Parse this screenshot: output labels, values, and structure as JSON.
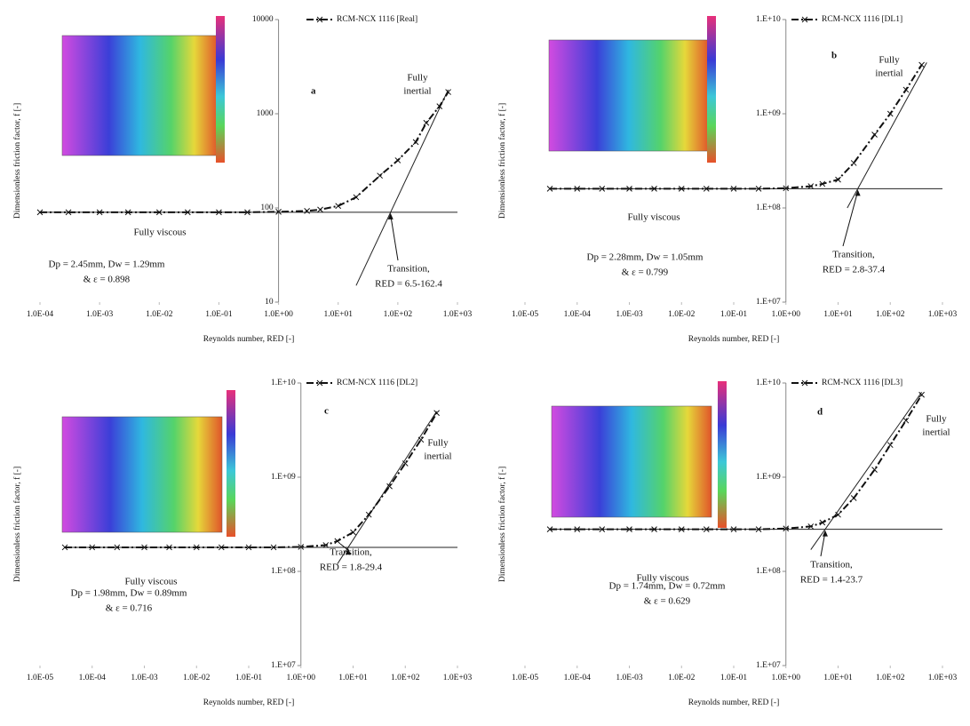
{
  "chart_data": [
    {
      "type": "line",
      "panel_label": "a",
      "log_x": true,
      "log_y": true,
      "x_label": "Reynolds number, RED [-]",
      "y_label": "Dimensionless friction factor, f [-]",
      "xlim": [
        0.0001,
        1000
      ],
      "ylim": [
        10,
        10000
      ],
      "xticks": [
        {
          "value": 0.0001,
          "label": "1.0E-04"
        },
        {
          "value": 0.001,
          "label": "1.0E-03"
        },
        {
          "value": 0.01,
          "label": "1.0E-02"
        },
        {
          "value": 0.1,
          "label": "1.0E-01"
        },
        {
          "value": 1,
          "label": "1.0E+00"
        },
        {
          "value": 10,
          "label": "1.0E+01"
        },
        {
          "value": 100,
          "label": "1.0E+02"
        },
        {
          "value": 1000,
          "label": "1.0E+03"
        }
      ],
      "yticks": [
        10,
        100,
        1000,
        10000
      ],
      "x": [
        0.0001,
        0.0003,
        0.001,
        0.003,
        0.01,
        0.03,
        0.1,
        0.3,
        1,
        3,
        5,
        10,
        20,
        50,
        100,
        200,
        300,
        500,
        700
      ],
      "series": [
        {
          "name": "RCM-NCX 1116 [Real]",
          "color": "#111111",
          "values": [
            90,
            90,
            90,
            90,
            90,
            90,
            90,
            90,
            91,
            93,
            96,
            105,
            130,
            220,
            320,
            500,
            800,
            1200,
            1700
          ]
        }
      ],
      "reference_lines": [
        {
          "x": [
            0.0001,
            1000
          ],
          "values": [
            90,
            90
          ]
        },
        {
          "x": [
            20,
            700
          ],
          "values": [
            15,
            1800
          ]
        }
      ],
      "inertial_label": [
        "Fully",
        "inertial"
      ],
      "viscous_label": "Fully viscous",
      "params": [
        "Dp = 2.45mm, Dw = 1.29mm",
        "& ε = 0.898"
      ],
      "transition": [
        "Transition,",
        "RED = 6.5-162.4"
      ]
    },
    {
      "type": "line",
      "panel_label": "b",
      "log_x": true,
      "log_y": true,
      "x_label": "Reynolds number, RED [-]",
      "y_label": "Dimensionless friction factor, f [-]",
      "xlim": [
        1e-05,
        1000
      ],
      "ylim": [
        10000000,
        10000000000
      ],
      "xticks": [
        {
          "value": 1e-05,
          "label": "1.0E-05"
        },
        {
          "value": 0.0001,
          "label": "1.0E-04"
        },
        {
          "value": 0.001,
          "label": "1.0E-03"
        },
        {
          "value": 0.01,
          "label": "1.0E-02"
        },
        {
          "value": 0.1,
          "label": "1.0E-01"
        },
        {
          "value": 1,
          "label": "1.0E+00"
        },
        {
          "value": 10,
          "label": "1.0E+01"
        },
        {
          "value": 100,
          "label": "1.0E+02"
        },
        {
          "value": 1000,
          "label": "1.0E+03"
        }
      ],
      "yticks": [
        {
          "value": 10000000,
          "label": "1.E+07"
        },
        {
          "value": 100000000,
          "label": "1.E+08"
        },
        {
          "value": 1000000000,
          "label": "1.E+09"
        },
        {
          "value": 10000000000,
          "label": "1.E+10"
        }
      ],
      "x": [
        3e-05,
        0.0001,
        0.0003,
        0.001,
        0.003,
        0.01,
        0.03,
        0.1,
        0.3,
        1,
        3,
        5,
        10,
        20,
        50,
        100,
        200,
        400
      ],
      "series": [
        {
          "name": "RCM-NCX 1116 [DL1]",
          "color": "#111111",
          "values": [
            160000000,
            160000000,
            160000000,
            160000000,
            160000000,
            160000000,
            160000000,
            160000000,
            160000000,
            162000000,
            170000000,
            180000000,
            200000000,
            300000000,
            600000000,
            1000000000,
            1800000000,
            3300000000
          ]
        }
      ],
      "reference_lines": [
        {
          "x": [
            3e-05,
            1000
          ],
          "values": [
            160000000,
            160000000
          ]
        },
        {
          "x": [
            15,
            500
          ],
          "values": [
            100000000,
            3500000000
          ]
        }
      ],
      "inertial_label": [
        "Fully",
        "inertial"
      ],
      "viscous_label": "Fully viscous",
      "params": [
        "Dp = 2.28mm, Dw = 1.05mm",
        "& ε = 0.799"
      ],
      "transition": [
        "Transition,",
        "RED = 2.8-37.4"
      ]
    },
    {
      "type": "line",
      "panel_label": "c",
      "log_x": true,
      "log_y": true,
      "x_label": "Reynolds number, RED [-]",
      "y_label": "Dimensionless friction factor, f [-]",
      "xlim": [
        1e-05,
        1000
      ],
      "ylim": [
        10000000,
        10000000000
      ],
      "xticks": [
        {
          "value": 1e-05,
          "label": "1.0E-05"
        },
        {
          "value": 0.0001,
          "label": "1.0E-04"
        },
        {
          "value": 0.001,
          "label": "1.0E-03"
        },
        {
          "value": 0.01,
          "label": "1.0E-02"
        },
        {
          "value": 0.1,
          "label": "1.0E-01"
        },
        {
          "value": 1,
          "label": "1.0E+00"
        },
        {
          "value": 10,
          "label": "1.0E+01"
        },
        {
          "value": 100,
          "label": "1.0E+02"
        },
        {
          "value": 1000,
          "label": "1.0E+03"
        }
      ],
      "yticks": [
        {
          "value": 10000000,
          "label": "1.E+07"
        },
        {
          "value": 100000000,
          "label": "1.E+08"
        },
        {
          "value": 1000000000,
          "label": "1.E+09"
        },
        {
          "value": 10000000000,
          "label": "1.E+10"
        }
      ],
      "x": [
        3e-05,
        0.0001,
        0.0003,
        0.001,
        0.003,
        0.01,
        0.03,
        0.1,
        0.3,
        1,
        3,
        5,
        10,
        20,
        50,
        100,
        200,
        400
      ],
      "series": [
        {
          "name": "RCM-NCX 1116 [DL2]",
          "color": "#111111",
          "values": [
            180000000,
            180000000,
            180000000,
            180000000,
            180000000,
            180000000,
            180000000,
            180000000,
            180000000,
            182000000,
            190000000,
            210000000,
            260000000,
            400000000,
            800000000,
            1400000000,
            2500000000,
            4800000000
          ]
        }
      ],
      "reference_lines": [
        {
          "x": [
            3e-05,
            1000
          ],
          "values": [
            180000000,
            180000000
          ]
        },
        {
          "x": [
            5,
            400
          ],
          "values": [
            120000000,
            5000000000
          ]
        }
      ],
      "inertial_label": [
        "Fully",
        "inertial"
      ],
      "viscous_label": "Fully viscous",
      "params": [
        "Dp = 1.98mm, Dw = 0.89mm",
        "& ε = 0.716"
      ],
      "transition": [
        "Transition,",
        "RED = 1.8-29.4"
      ]
    },
    {
      "type": "line",
      "panel_label": "d",
      "log_x": true,
      "log_y": true,
      "x_label": "Reynolds number, RED [-]",
      "y_label": "Dimensionless friction factor, f [-]",
      "xlim": [
        1e-05,
        1000
      ],
      "ylim": [
        10000000,
        10000000000
      ],
      "xticks": [
        {
          "value": 1e-05,
          "label": "1.0E-05"
        },
        {
          "value": 0.0001,
          "label": "1.0E-04"
        },
        {
          "value": 0.001,
          "label": "1.0E-03"
        },
        {
          "value": 0.01,
          "label": "1.0E-02"
        },
        {
          "value": 0.1,
          "label": "1.0E-01"
        },
        {
          "value": 1,
          "label": "1.0E+00"
        },
        {
          "value": 10,
          "label": "1.0E+01"
        },
        {
          "value": 100,
          "label": "1.0E+02"
        },
        {
          "value": 1000,
          "label": "1.0E+03"
        }
      ],
      "yticks": [
        {
          "value": 10000000,
          "label": "1.E+07"
        },
        {
          "value": 100000000,
          "label": "1.E+08"
        },
        {
          "value": 1000000000,
          "label": "1.E+09"
        },
        {
          "value": 10000000000,
          "label": "1.E+10"
        }
      ],
      "x": [
        3e-05,
        0.0001,
        0.0003,
        0.001,
        0.003,
        0.01,
        0.03,
        0.1,
        0.3,
        1,
        3,
        5,
        10,
        20,
        50,
        100,
        200,
        400
      ],
      "series": [
        {
          "name": "RCM-NCX 1116 [DL3]",
          "color": "#111111",
          "values": [
            280000000,
            280000000,
            280000000,
            280000000,
            280000000,
            280000000,
            280000000,
            280000000,
            280000000,
            285000000,
            300000000,
            330000000,
            400000000,
            600000000,
            1200000000,
            2200000000,
            4000000000,
            7500000000
          ]
        }
      ],
      "reference_lines": [
        {
          "x": [
            3e-05,
            1000
          ],
          "values": [
            280000000,
            280000000
          ]
        },
        {
          "x": [
            3,
            400
          ],
          "values": [
            170000000,
            8000000000
          ]
        }
      ],
      "inertial_label": [
        "Fully",
        "inertial"
      ],
      "viscous_label": "Fully viscous",
      "params": [
        "Dp = 1.74mm, Dw = 0.72mm",
        "& ε = 0.629"
      ],
      "transition": [
        "Transition,",
        "RED = 1.4-23.7"
      ]
    }
  ]
}
